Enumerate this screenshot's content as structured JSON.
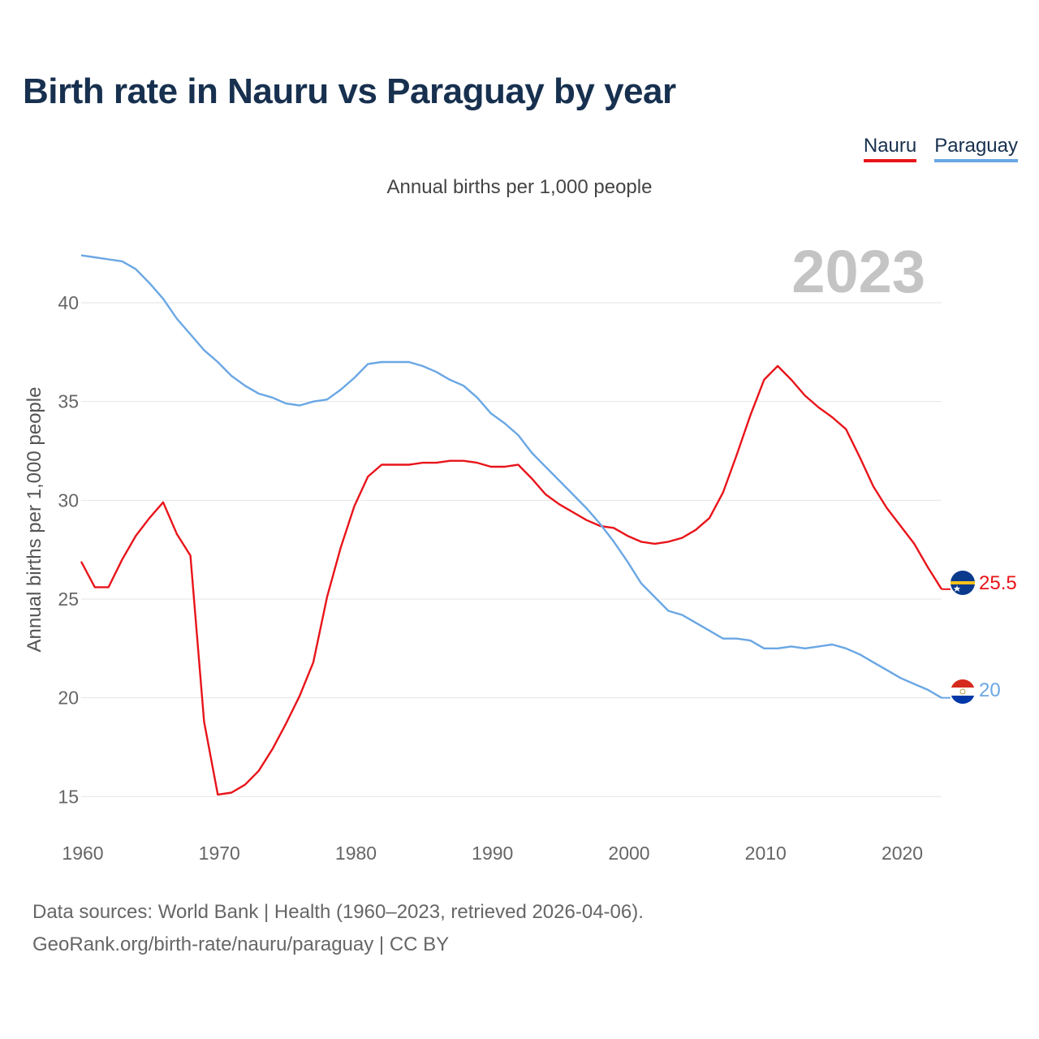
{
  "title": "Birth rate in Nauru vs Paraguay by year",
  "subtitle": "Annual births per 1,000 people",
  "colors": {
    "nauru": "#e8141a",
    "paraguay": "#6aa7e4",
    "title": "#17304f",
    "grid": "#e6e6e6",
    "tick": "#666666",
    "year_watermark": "#c4c4c4"
  },
  "footer": {
    "line1": "Data sources: World Bank | Health (1960–2023, retrieved 2026-04-06).",
    "line2": "GeoRank.org/birth-rate/nauru/paraguay | CC BY"
  },
  "chart_data": {
    "type": "line",
    "title": "Birth rate in Nauru vs Paraguay by year",
    "subtitle": "Annual births per 1,000 people",
    "ylabel": "Annual births per 1,000 people",
    "xlabel": "",
    "year_label": "2023",
    "xlim": [
      1960,
      2023
    ],
    "ylim": [
      13,
      43
    ],
    "grid": true,
    "legend_position": "top-right",
    "x_ticks": [
      1960,
      1970,
      1980,
      1990,
      2000,
      2010,
      2020
    ],
    "x_tick_labels": [
      "1960",
      "1970",
      "1980",
      "1990",
      "2000",
      "2010",
      "2020"
    ],
    "y_ticks": [
      15,
      20,
      25,
      30,
      35,
      40
    ],
    "y_tick_labels": [
      "15",
      "20",
      "25",
      "30",
      "35",
      "40"
    ],
    "x": [
      1960,
      1961,
      1962,
      1963,
      1964,
      1965,
      1966,
      1967,
      1968,
      1969,
      1970,
      1971,
      1972,
      1973,
      1974,
      1975,
      1976,
      1977,
      1978,
      1979,
      1980,
      1981,
      1982,
      1983,
      1984,
      1985,
      1986,
      1987,
      1988,
      1989,
      1990,
      1991,
      1992,
      1993,
      1994,
      1995,
      1996,
      1997,
      1998,
      1999,
      2000,
      2001,
      2002,
      2003,
      2004,
      2005,
      2006,
      2007,
      2008,
      2009,
      2010,
      2011,
      2012,
      2013,
      2014,
      2015,
      2016,
      2017,
      2018,
      2019,
      2020,
      2021,
      2022,
      2023
    ],
    "series": [
      {
        "name": "Nauru",
        "key": "nauru",
        "end_label": "25.5",
        "values": [
          26.9,
          25.6,
          25.6,
          27.0,
          28.2,
          29.1,
          29.9,
          28.3,
          27.2,
          18.8,
          15.1,
          15.2,
          15.6,
          16.3,
          17.4,
          18.7,
          20.1,
          21.8,
          25.1,
          27.6,
          29.7,
          31.2,
          31.8,
          31.8,
          31.8,
          31.9,
          31.9,
          32.0,
          32.0,
          31.9,
          31.7,
          31.7,
          31.8,
          31.1,
          30.3,
          29.8,
          29.4,
          29.0,
          28.7,
          28.6,
          28.2,
          27.9,
          27.8,
          27.9,
          28.1,
          28.5,
          29.1,
          30.4,
          32.3,
          34.3,
          36.1,
          36.8,
          36.1,
          35.3,
          34.7,
          34.2,
          33.6,
          32.2,
          30.7,
          29.6,
          28.7,
          27.8,
          26.6,
          25.5
        ]
      },
      {
        "name": "Paraguay",
        "key": "paraguay",
        "end_label": "20",
        "values": [
          42.4,
          42.3,
          42.2,
          42.1,
          41.7,
          41.0,
          40.2,
          39.2,
          38.4,
          37.6,
          37.0,
          36.3,
          35.8,
          35.4,
          35.2,
          34.9,
          34.8,
          35.0,
          35.1,
          35.6,
          36.2,
          36.9,
          37.0,
          37.0,
          37.0,
          36.8,
          36.5,
          36.1,
          35.8,
          35.2,
          34.4,
          33.9,
          33.3,
          32.4,
          31.7,
          31.0,
          30.3,
          29.6,
          28.8,
          27.9,
          26.9,
          25.8,
          25.1,
          24.4,
          24.2,
          23.8,
          23.4,
          23.0,
          23.0,
          22.9,
          22.5,
          22.5,
          22.6,
          22.5,
          22.6,
          22.7,
          22.5,
          22.2,
          21.8,
          21.4,
          21.0,
          20.7,
          20.4,
          20.0
        ]
      }
    ]
  }
}
